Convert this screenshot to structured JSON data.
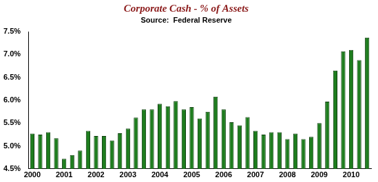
{
  "chart_data": {
    "type": "bar",
    "title": "Corporate Cash - % of Assets",
    "subtitle": "Source:  Federal Reserve",
    "categories": [
      "2000",
      null,
      null,
      null,
      "2001",
      null,
      null,
      null,
      "2002",
      null,
      null,
      null,
      "2003",
      null,
      null,
      null,
      "2004",
      null,
      null,
      null,
      "2005",
      null,
      null,
      null,
      "2006",
      null,
      null,
      null,
      "2007",
      null,
      null,
      null,
      "2008",
      null,
      null,
      null,
      "2009",
      null,
      null,
      null,
      "2010",
      null,
      null
    ],
    "values": [
      5.27,
      5.25,
      5.3,
      5.17,
      4.72,
      4.8,
      4.9,
      5.33,
      5.22,
      5.22,
      5.12,
      5.28,
      5.38,
      5.62,
      5.8,
      5.8,
      5.92,
      5.87,
      5.98,
      5.8,
      5.85,
      5.6,
      5.75,
      6.08,
      5.8,
      5.52,
      5.45,
      5.63,
      5.33,
      5.25,
      5.3,
      5.3,
      5.15,
      5.27,
      5.15,
      5.2,
      5.5,
      5.97,
      6.65,
      7.07,
      7.1,
      6.88,
      7.37
    ],
    "color": "#1e7d1e",
    "ylim": [
      4.5,
      7.5
    ],
    "yticks": [
      {
        "value": 4.5,
        "label": "4.5%"
      },
      {
        "value": 5.0,
        "label": "5.0%"
      },
      {
        "value": 5.5,
        "label": "5.5%"
      },
      {
        "value": 6.0,
        "label": "6.0%"
      },
      {
        "value": 6.5,
        "label": "6.5%"
      },
      {
        "value": 7.0,
        "label": "7.0%"
      },
      {
        "value": 7.5,
        "label": "7.5%"
      }
    ],
    "grid": false
  }
}
